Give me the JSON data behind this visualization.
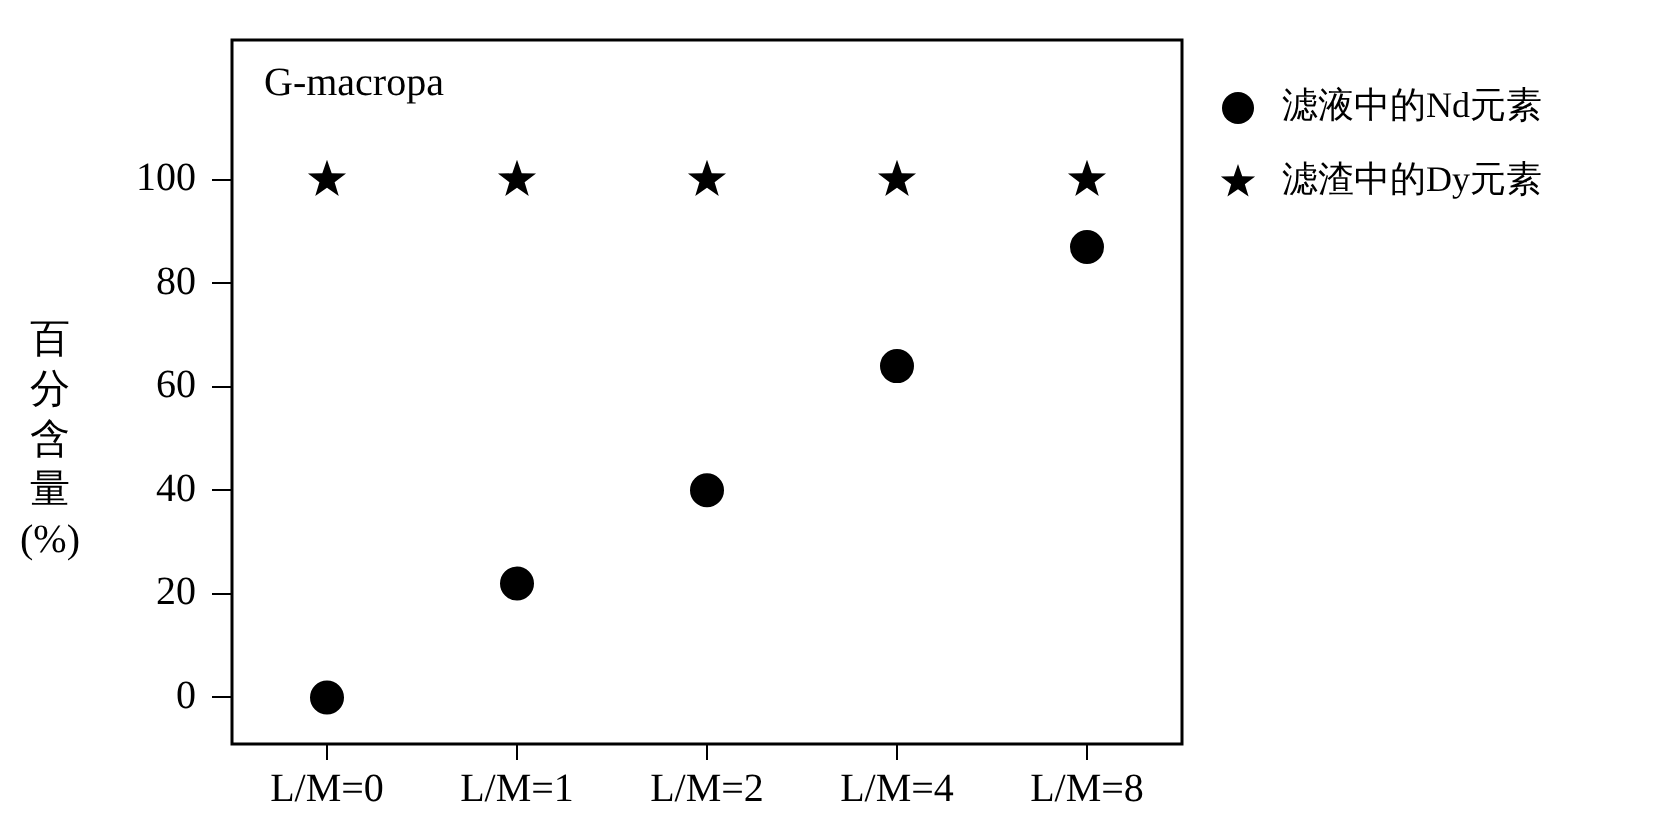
{
  "chart_data": {
    "type": "scatter",
    "title": "G-macropa",
    "ylabel": "百分含量(%)",
    "categories": [
      "L/M=0",
      "L/M=1",
      "L/M=2",
      "L/M=4",
      "L/M=8"
    ],
    "series": [
      {
        "name": "滤液中的Nd元素",
        "color": "#000000",
        "marker": "circle",
        "values": [
          0,
          22,
          40,
          64,
          87
        ]
      },
      {
        "name": "滤渣中的Dy元素",
        "color": "#000000",
        "marker": "star",
        "values": [
          100,
          100,
          100,
          100,
          100
        ]
      }
    ],
    "ylim": [
      -9,
      127
    ],
    "yticks": [
      0,
      20,
      40,
      60,
      80,
      100
    ],
    "legend": "right"
  }
}
